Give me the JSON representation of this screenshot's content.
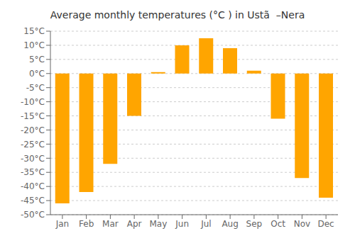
{
  "chart_data": {
    "type": "bar",
    "title": "Average monthly temperatures (°C ) in Ustã  –Nera",
    "categories": [
      "Jan",
      "Feb",
      "Mar",
      "Apr",
      "May",
      "Jun",
      "Jul",
      "Aug",
      "Sep",
      "Oct",
      "Nov",
      "Dec"
    ],
    "values": [
      -46,
      -42,
      -32,
      -15,
      0.5,
      10,
      12.5,
      9,
      1,
      -16,
      -37,
      -44
    ],
    "color": "#FFA500",
    "ylim": [
      -50,
      15
    ],
    "yticks": [
      {
        "value": -50,
        "label": "-50°C"
      },
      {
        "value": -45,
        "label": "-45°C"
      },
      {
        "value": -40,
        "label": "-40°C"
      },
      {
        "value": -35,
        "label": "-35°C"
      },
      {
        "value": -30,
        "label": "-30°C"
      },
      {
        "value": -25,
        "label": "-25°C"
      },
      {
        "value": -20,
        "label": "-20°C"
      },
      {
        "value": -15,
        "label": "-15°C"
      },
      {
        "value": -10,
        "label": "-10°C"
      },
      {
        "value": -5,
        "label": "-5°C"
      },
      {
        "value": 0,
        "label": "0°C"
      },
      {
        "value": 5,
        "label": "5°C"
      },
      {
        "value": 10,
        "label": "10°C"
      },
      {
        "value": 15,
        "label": "15°C"
      }
    ],
    "grid": true
  }
}
